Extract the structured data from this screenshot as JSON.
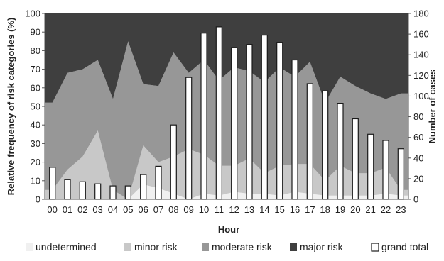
{
  "chart_data": {
    "type": "area",
    "title": "",
    "xlabel": "Hour",
    "ylabel_left": "Relative frequency of risk categories (%)",
    "ylabel_right": "Number of cases",
    "ylim_left": [
      0,
      100
    ],
    "ylim_right": [
      0,
      180
    ],
    "yticks_left": [
      "0",
      "10",
      "20",
      "30",
      "40",
      "50",
      "60",
      "70",
      "80",
      "90",
      "100"
    ],
    "yticks_right": [
      "0",
      "20",
      "40",
      "60",
      "80",
      "100",
      "120",
      "140",
      "160",
      "180"
    ],
    "categories": [
      "00",
      "01",
      "02",
      "03",
      "04",
      "05",
      "06",
      "07",
      "08",
      "09",
      "10",
      "11",
      "12",
      "13",
      "14",
      "15",
      "16",
      "17",
      "18",
      "19",
      "20",
      "21",
      "22",
      "23"
    ],
    "legend_position": "bottom",
    "series": [
      {
        "name": "undetermined",
        "kind": "area",
        "color": "#f0f0f0",
        "values": [
          0,
          0,
          0,
          0,
          0,
          0,
          8,
          6,
          3,
          0,
          3,
          2,
          4,
          3,
          3,
          2,
          4,
          3,
          2,
          2,
          2,
          2,
          3,
          2
        ]
      },
      {
        "name": "minor risk",
        "kind": "area",
        "color": "#c8c8c8",
        "values": [
          5,
          16,
          23,
          37,
          5,
          0,
          21,
          14,
          20,
          27,
          21,
          16,
          14,
          19,
          11,
          16,
          15,
          16,
          8,
          16,
          12,
          12,
          14,
          3
        ]
      },
      {
        "name": "moderate risk",
        "kind": "area",
        "color": "#979797",
        "values": [
          47,
          52,
          47,
          38,
          49,
          85,
          33,
          41,
          56,
          41,
          51,
          46,
          53,
          47,
          49,
          53,
          47,
          55,
          42,
          48,
          47,
          43,
          37,
          52
        ]
      },
      {
        "name": "major risk",
        "kind": "area",
        "color": "#3f3f3f",
        "values": [
          48,
          32,
          30,
          25,
          46,
          15,
          38,
          39,
          21,
          32,
          25,
          36,
          29,
          31,
          37,
          29,
          34,
          26,
          48,
          34,
          39,
          43,
          46,
          43
        ]
      },
      {
        "name": "grand total",
        "kind": "bar",
        "color": "#ffffff",
        "values": [
          31,
          19,
          17,
          15,
          13,
          13,
          24,
          32,
          72,
          118,
          161,
          167,
          147,
          150,
          159,
          152,
          135,
          112,
          105,
          93,
          78,
          63,
          57,
          49
        ]
      }
    ]
  }
}
